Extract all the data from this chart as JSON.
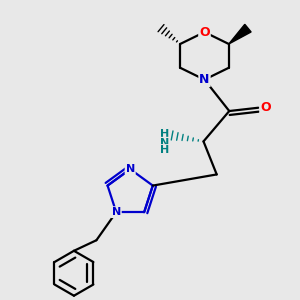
{
  "background_color": "#e8e8e8",
  "atom_colors": {
    "C": "#000000",
    "N": "#0000cd",
    "O": "#ff0000",
    "H": "#008080"
  },
  "line_width": 1.6
}
